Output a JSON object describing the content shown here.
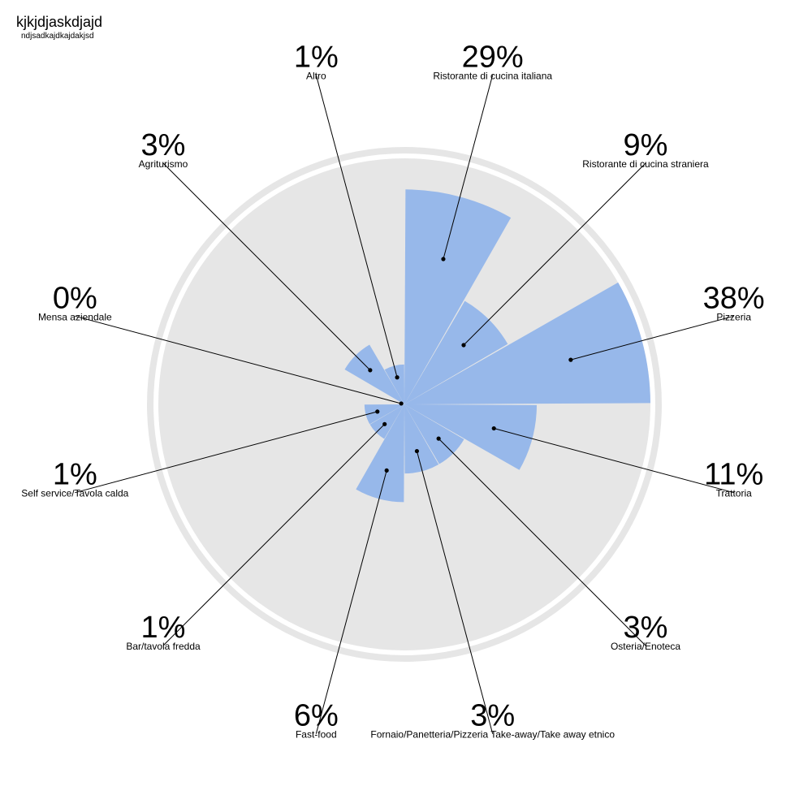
{
  "header": {
    "title": "kjkjdjaskdjajd",
    "subtitle": "ndjsadkajdkajdakjsd"
  },
  "chart_data": {
    "type": "polar-area",
    "title": "kjkjdjaskdjajd",
    "subtitle": "ndjsadkajdkajdakjsd",
    "unit": "%",
    "max_value": 38,
    "colors": {
      "sector": "#97b8ea",
      "background": "#e6e6e6",
      "ring": "#e6e6e6",
      "leader": "#000000"
    },
    "categories": [
      "Ristorante di cucina italiana",
      "Ristorante di cucina straniera",
      "Pizzeria",
      "Trattoria",
      "Osteria/Enoteca",
      "Fornaio/Panetteria/Pizzeria Take-away/Take away etnico",
      "Fast-food",
      "Bar/tavola fredda",
      "Self service/Tavola calda",
      "Mensa aziendale",
      "Agriturismo",
      "Altro"
    ],
    "values": [
      29,
      9,
      38,
      11,
      3,
      3,
      6,
      1,
      1,
      0,
      3,
      1
    ],
    "labels": [
      "29%",
      "9%",
      "38%",
      "11%",
      "3%",
      "3%",
      "6%",
      "1%",
      "1%",
      "0%",
      "3%",
      "1%"
    ]
  }
}
